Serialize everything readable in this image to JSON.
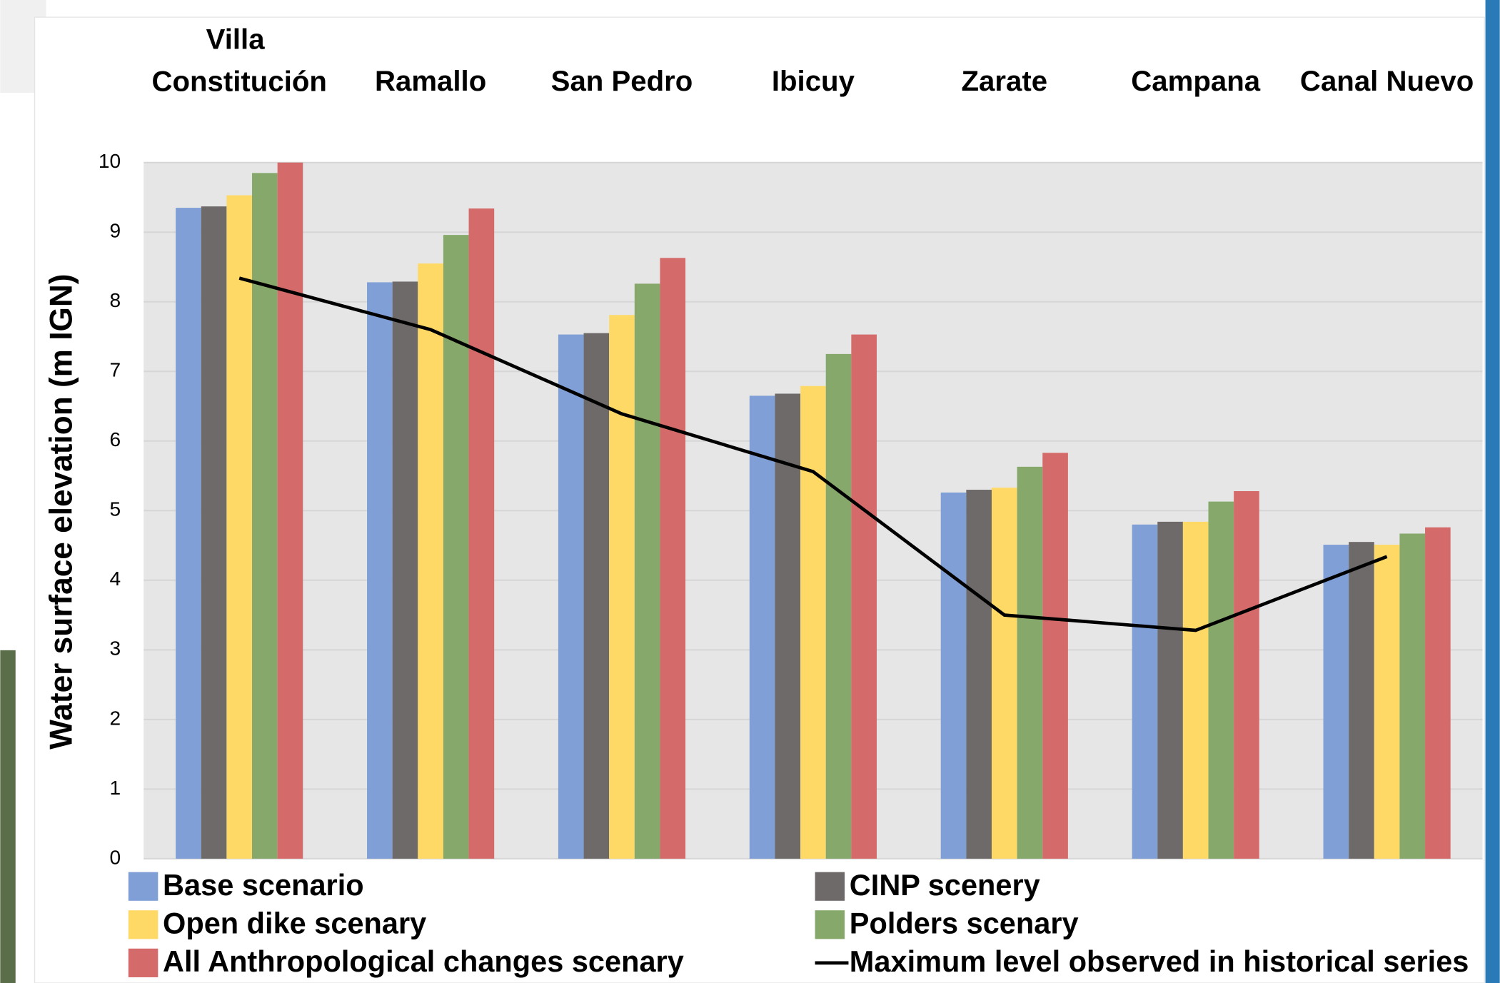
{
  "chart_data": {
    "type": "bar",
    "y_label": "Water surface elevation (m IGN)",
    "categories": [
      "Villa Constitución",
      "Ramallo",
      "San Pedro",
      "Ibicuy",
      "Zarate",
      "Campana",
      "Canal Nuevo"
    ],
    "ylim": [
      0,
      10
    ],
    "yticks": [
      0,
      1,
      2,
      3,
      4,
      5,
      6,
      7,
      8,
      9,
      10
    ],
    "grid": true,
    "series": [
      {
        "name": "Base scenario",
        "color": "#7f9fd6",
        "values": [
          9.35,
          8.28,
          7.53,
          6.65,
          5.26,
          4.8,
          4.51
        ]
      },
      {
        "name": "CINP scenery",
        "color": "#6f6a6a",
        "values": [
          9.37,
          8.29,
          7.55,
          6.68,
          5.3,
          4.84,
          4.55
        ]
      },
      {
        "name": "Open dike scenary",
        "color": "#ffd966",
        "values": [
          9.53,
          8.55,
          7.81,
          6.79,
          5.33,
          4.84,
          4.51
        ]
      },
      {
        "name": "Polders scenary",
        "color": "#86a86b",
        "values": [
          9.85,
          8.96,
          8.26,
          7.25,
          5.63,
          5.13,
          4.67
        ]
      },
      {
        "name": "All Anthropological changes scenary",
        "color": "#d46a6a",
        "values": [
          10.0,
          9.34,
          8.63,
          7.53,
          5.83,
          5.28,
          4.76
        ]
      },
      {
        "name": "Maximum level observed in historical series",
        "color": "#000000",
        "type": "line",
        "values": [
          8.34,
          7.6,
          6.39,
          5.56,
          3.5,
          3.28,
          4.34
        ]
      }
    ]
  }
}
